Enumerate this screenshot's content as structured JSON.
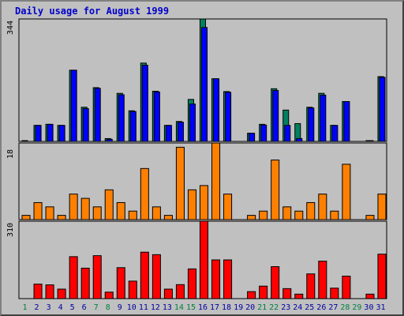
{
  "title": "Daily usage for August 1999",
  "colors": {
    "background": "#c0c0c0",
    "title": "#0000cc",
    "hits": "#008060",
    "files": "#0000ff",
    "kbytes": "#ff8000",
    "visits": "#ff0000",
    "weekday_label": "#0000a0",
    "weekend_label": "#008040"
  },
  "chart_data": [
    {
      "type": "bar",
      "panel": "top",
      "ymax_label": "344",
      "ylim": [
        0,
        344
      ],
      "categories": [
        "1",
        "2",
        "3",
        "4",
        "5",
        "6",
        "7",
        "8",
        "9",
        "10",
        "11",
        "12",
        "13",
        "14",
        "15",
        "16",
        "17",
        "18",
        "19",
        "20",
        "21",
        "22",
        "23",
        "24",
        "25",
        "26",
        "27",
        "28",
        "29",
        "30",
        "31"
      ],
      "weekend_days": [
        "1",
        "7",
        "8",
        "14",
        "15",
        "21",
        "22",
        "28",
        "29"
      ],
      "series": [
        {
          "color": "#008060",
          "values": [
            2,
            45,
            48,
            45,
            200,
            96,
            151,
            8,
            135,
            86,
            220,
            141,
            45,
            56,
            118,
            344,
            176,
            140,
            0,
            23,
            48,
            148,
            88,
            50,
            96,
            135,
            45,
            112,
            0,
            2,
            182
          ]
        },
        {
          "color": "#0000ff",
          "values": [
            0,
            45,
            48,
            45,
            200,
            92,
            149,
            6,
            131,
            84,
            214,
            139,
            45,
            54,
            105,
            320,
            176,
            138,
            0,
            23,
            46,
            143,
            45,
            8,
            94,
            130,
            45,
            112,
            0,
            2,
            180
          ]
        }
      ]
    },
    {
      "type": "bar",
      "panel": "middle",
      "ymax_label": "18",
      "ylim": [
        0,
        18
      ],
      "series": [
        {
          "color": "#ff8000",
          "values": [
            1,
            4,
            3,
            1,
            6,
            5,
            3,
            7,
            4,
            2,
            12,
            3,
            1,
            17,
            7,
            8,
            18,
            6,
            0,
            1,
            2,
            14,
            3,
            2,
            4,
            6,
            2,
            13,
            0,
            1,
            6
          ]
        }
      ]
    },
    {
      "type": "bar",
      "panel": "bottom",
      "ymax_label": "310",
      "ylim": [
        0,
        310
      ],
      "series": [
        {
          "color": "#ff0000",
          "values": [
            0,
            58,
            55,
            38,
            168,
            122,
            172,
            26,
            124,
            70,
            186,
            176,
            38,
            56,
            119,
            310,
            155,
            155,
            0,
            28,
            50,
            128,
            40,
            18,
            99,
            150,
            42,
            90,
            0,
            18,
            178
          ]
        }
      ]
    }
  ]
}
